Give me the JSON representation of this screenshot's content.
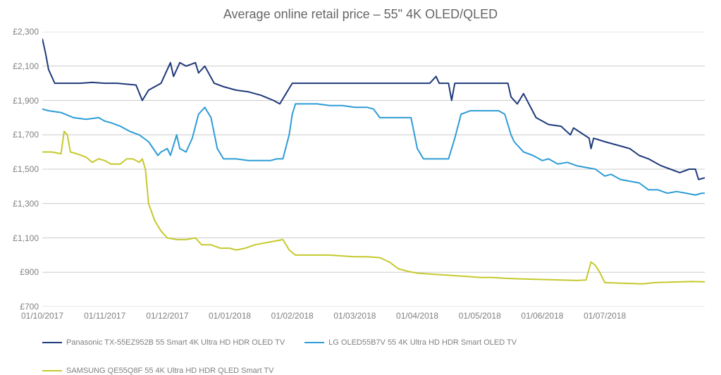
{
  "chart": {
    "type": "line",
    "title": "Average online retail price – 55\" 4K OLED/QLED",
    "title_fontsize": 18,
    "title_color": "#666666",
    "background_color": "#ffffff",
    "grid_color": "#cccccc",
    "axis_label_color": "#808080",
    "axis_fontsize": 12,
    "ylim": [
      700,
      2300
    ],
    "ytick_step": 200,
    "ytick_prefix": "£",
    "yticks": [
      700,
      900,
      1100,
      1300,
      1500,
      1700,
      1900,
      2100,
      2300
    ],
    "xlabels": [
      "01/10/2017",
      "01/11/2017",
      "01/12/2017",
      "01/01/2018",
      "01/02/2018",
      "01/03/2018",
      "01/04/2018",
      "01/05/2018",
      "01/06/2018",
      "01/07/2018"
    ],
    "xrange_count": 10.6,
    "line_width": 2,
    "series": [
      {
        "name": "Panasonic TX-55EZ952B 55 Smart 4K Ultra HD HDR OLED TV",
        "color": "#1f3a7a",
        "data": [
          [
            0.0,
            2260
          ],
          [
            0.05,
            2180
          ],
          [
            0.1,
            2080
          ],
          [
            0.2,
            2000
          ],
          [
            0.4,
            2000
          ],
          [
            0.6,
            2000
          ],
          [
            0.8,
            2005
          ],
          [
            1.0,
            2000
          ],
          [
            1.2,
            2000
          ],
          [
            1.5,
            1990
          ],
          [
            1.6,
            1900
          ],
          [
            1.7,
            1960
          ],
          [
            1.8,
            1980
          ],
          [
            1.9,
            2000
          ],
          [
            2.05,
            2120
          ],
          [
            2.1,
            2040
          ],
          [
            2.2,
            2120
          ],
          [
            2.3,
            2100
          ],
          [
            2.45,
            2120
          ],
          [
            2.5,
            2060
          ],
          [
            2.6,
            2100
          ],
          [
            2.75,
            2000
          ],
          [
            2.9,
            1980
          ],
          [
            3.1,
            1960
          ],
          [
            3.3,
            1950
          ],
          [
            3.5,
            1930
          ],
          [
            3.7,
            1900
          ],
          [
            3.8,
            1880
          ],
          [
            3.9,
            1940
          ],
          [
            4.0,
            2000
          ],
          [
            4.3,
            2000
          ],
          [
            4.6,
            2000
          ],
          [
            5.0,
            2000
          ],
          [
            5.3,
            2000
          ],
          [
            5.6,
            2000
          ],
          [
            5.9,
            2000
          ],
          [
            6.0,
            2000
          ],
          [
            6.2,
            2000
          ],
          [
            6.3,
            2040
          ],
          [
            6.35,
            2000
          ],
          [
            6.5,
            2000
          ],
          [
            6.55,
            1900
          ],
          [
            6.6,
            2000
          ],
          [
            7.0,
            2000
          ],
          [
            7.3,
            2000
          ],
          [
            7.45,
            2000
          ],
          [
            7.5,
            1920
          ],
          [
            7.6,
            1880
          ],
          [
            7.7,
            1940
          ],
          [
            7.9,
            1800
          ],
          [
            8.1,
            1760
          ],
          [
            8.3,
            1750
          ],
          [
            8.45,
            1700
          ],
          [
            8.5,
            1740
          ],
          [
            8.75,
            1680
          ],
          [
            8.78,
            1620
          ],
          [
            8.82,
            1680
          ],
          [
            9.0,
            1660
          ],
          [
            9.2,
            1640
          ],
          [
            9.4,
            1620
          ],
          [
            9.55,
            1580
          ],
          [
            9.7,
            1560
          ],
          [
            9.9,
            1520
          ],
          [
            10.05,
            1500
          ],
          [
            10.2,
            1480
          ],
          [
            10.35,
            1500
          ],
          [
            10.45,
            1500
          ],
          [
            10.5,
            1440
          ],
          [
            10.6,
            1450
          ]
        ]
      },
      {
        "name": "LG OLED55B7V 55 4K Ultra HD HDR Smart OLED TV",
        "color": "#2e9cd6",
        "data": [
          [
            0.0,
            1850
          ],
          [
            0.1,
            1840
          ],
          [
            0.3,
            1830
          ],
          [
            0.5,
            1800
          ],
          [
            0.7,
            1790
          ],
          [
            0.9,
            1800
          ],
          [
            1.0,
            1780
          ],
          [
            1.1,
            1770
          ],
          [
            1.25,
            1750
          ],
          [
            1.4,
            1720
          ],
          [
            1.55,
            1700
          ],
          [
            1.7,
            1660
          ],
          [
            1.85,
            1580
          ],
          [
            1.9,
            1600
          ],
          [
            2.0,
            1620
          ],
          [
            2.05,
            1580
          ],
          [
            2.15,
            1700
          ],
          [
            2.2,
            1620
          ],
          [
            2.3,
            1600
          ],
          [
            2.4,
            1680
          ],
          [
            2.5,
            1820
          ],
          [
            2.6,
            1860
          ],
          [
            2.7,
            1800
          ],
          [
            2.8,
            1620
          ],
          [
            2.9,
            1560
          ],
          [
            3.1,
            1560
          ],
          [
            3.3,
            1550
          ],
          [
            3.5,
            1550
          ],
          [
            3.65,
            1550
          ],
          [
            3.75,
            1560
          ],
          [
            3.85,
            1560
          ],
          [
            3.95,
            1700
          ],
          [
            4.0,
            1820
          ],
          [
            4.05,
            1880
          ],
          [
            4.2,
            1880
          ],
          [
            4.4,
            1880
          ],
          [
            4.6,
            1870
          ],
          [
            4.8,
            1870
          ],
          [
            5.0,
            1860
          ],
          [
            5.2,
            1860
          ],
          [
            5.3,
            1850
          ],
          [
            5.4,
            1800
          ],
          [
            5.6,
            1800
          ],
          [
            5.8,
            1800
          ],
          [
            5.9,
            1800
          ],
          [
            6.0,
            1620
          ],
          [
            6.1,
            1560
          ],
          [
            6.25,
            1560
          ],
          [
            6.4,
            1560
          ],
          [
            6.5,
            1560
          ],
          [
            6.6,
            1680
          ],
          [
            6.7,
            1820
          ],
          [
            6.85,
            1840
          ],
          [
            7.0,
            1840
          ],
          [
            7.15,
            1840
          ],
          [
            7.3,
            1840
          ],
          [
            7.4,
            1820
          ],
          [
            7.5,
            1700
          ],
          [
            7.55,
            1660
          ],
          [
            7.7,
            1600
          ],
          [
            7.85,
            1580
          ],
          [
            8.0,
            1550
          ],
          [
            8.1,
            1560
          ],
          [
            8.25,
            1530
          ],
          [
            8.4,
            1540
          ],
          [
            8.55,
            1520
          ],
          [
            8.7,
            1510
          ],
          [
            8.85,
            1500
          ],
          [
            9.0,
            1460
          ],
          [
            9.1,
            1470
          ],
          [
            9.25,
            1440
          ],
          [
            9.4,
            1430
          ],
          [
            9.55,
            1420
          ],
          [
            9.7,
            1380
          ],
          [
            9.85,
            1380
          ],
          [
            10.0,
            1360
          ],
          [
            10.15,
            1370
          ],
          [
            10.3,
            1360
          ],
          [
            10.45,
            1350
          ],
          [
            10.55,
            1360
          ],
          [
            10.6,
            1360
          ]
        ]
      },
      {
        "name": "SAMSUNG QE55Q8F 55 4K Ultra HD HDR QLED Smart TV",
        "color": "#c6c92d",
        "data": [
          [
            0.0,
            1600
          ],
          [
            0.15,
            1600
          ],
          [
            0.3,
            1590
          ],
          [
            0.35,
            1720
          ],
          [
            0.4,
            1700
          ],
          [
            0.45,
            1600
          ],
          [
            0.55,
            1590
          ],
          [
            0.7,
            1570
          ],
          [
            0.8,
            1540
          ],
          [
            0.9,
            1560
          ],
          [
            1.0,
            1550
          ],
          [
            1.1,
            1530
          ],
          [
            1.25,
            1530
          ],
          [
            1.35,
            1560
          ],
          [
            1.45,
            1560
          ],
          [
            1.55,
            1540
          ],
          [
            1.6,
            1560
          ],
          [
            1.65,
            1500
          ],
          [
            1.7,
            1300
          ],
          [
            1.8,
            1200
          ],
          [
            1.9,
            1140
          ],
          [
            2.0,
            1100
          ],
          [
            2.15,
            1090
          ],
          [
            2.3,
            1090
          ],
          [
            2.45,
            1100
          ],
          [
            2.55,
            1060
          ],
          [
            2.7,
            1060
          ],
          [
            2.85,
            1040
          ],
          [
            3.0,
            1040
          ],
          [
            3.1,
            1030
          ],
          [
            3.25,
            1040
          ],
          [
            3.4,
            1060
          ],
          [
            3.55,
            1070
          ],
          [
            3.7,
            1080
          ],
          [
            3.85,
            1090
          ],
          [
            3.95,
            1030
          ],
          [
            4.05,
            1000
          ],
          [
            4.2,
            1000
          ],
          [
            4.4,
            1000
          ],
          [
            4.6,
            1000
          ],
          [
            4.8,
            995
          ],
          [
            5.0,
            990
          ],
          [
            5.2,
            990
          ],
          [
            5.4,
            985
          ],
          [
            5.55,
            960
          ],
          [
            5.7,
            920
          ],
          [
            5.85,
            905
          ],
          [
            6.0,
            895
          ],
          [
            6.2,
            890
          ],
          [
            6.4,
            885
          ],
          [
            6.6,
            880
          ],
          [
            6.8,
            875
          ],
          [
            7.0,
            870
          ],
          [
            7.2,
            870
          ],
          [
            7.4,
            865
          ],
          [
            7.6,
            862
          ],
          [
            7.8,
            860
          ],
          [
            8.0,
            858
          ],
          [
            8.2,
            856
          ],
          [
            8.4,
            854
          ],
          [
            8.55,
            852
          ],
          [
            8.7,
            855
          ],
          [
            8.78,
            960
          ],
          [
            8.85,
            940
          ],
          [
            8.92,
            900
          ],
          [
            9.0,
            840
          ],
          [
            9.15,
            838
          ],
          [
            9.3,
            836
          ],
          [
            9.45,
            834
          ],
          [
            9.6,
            832
          ],
          [
            9.8,
            840
          ],
          [
            10.0,
            842
          ],
          [
            10.2,
            844
          ],
          [
            10.4,
            846
          ],
          [
            10.55,
            845
          ],
          [
            10.6,
            845
          ]
        ]
      }
    ]
  }
}
